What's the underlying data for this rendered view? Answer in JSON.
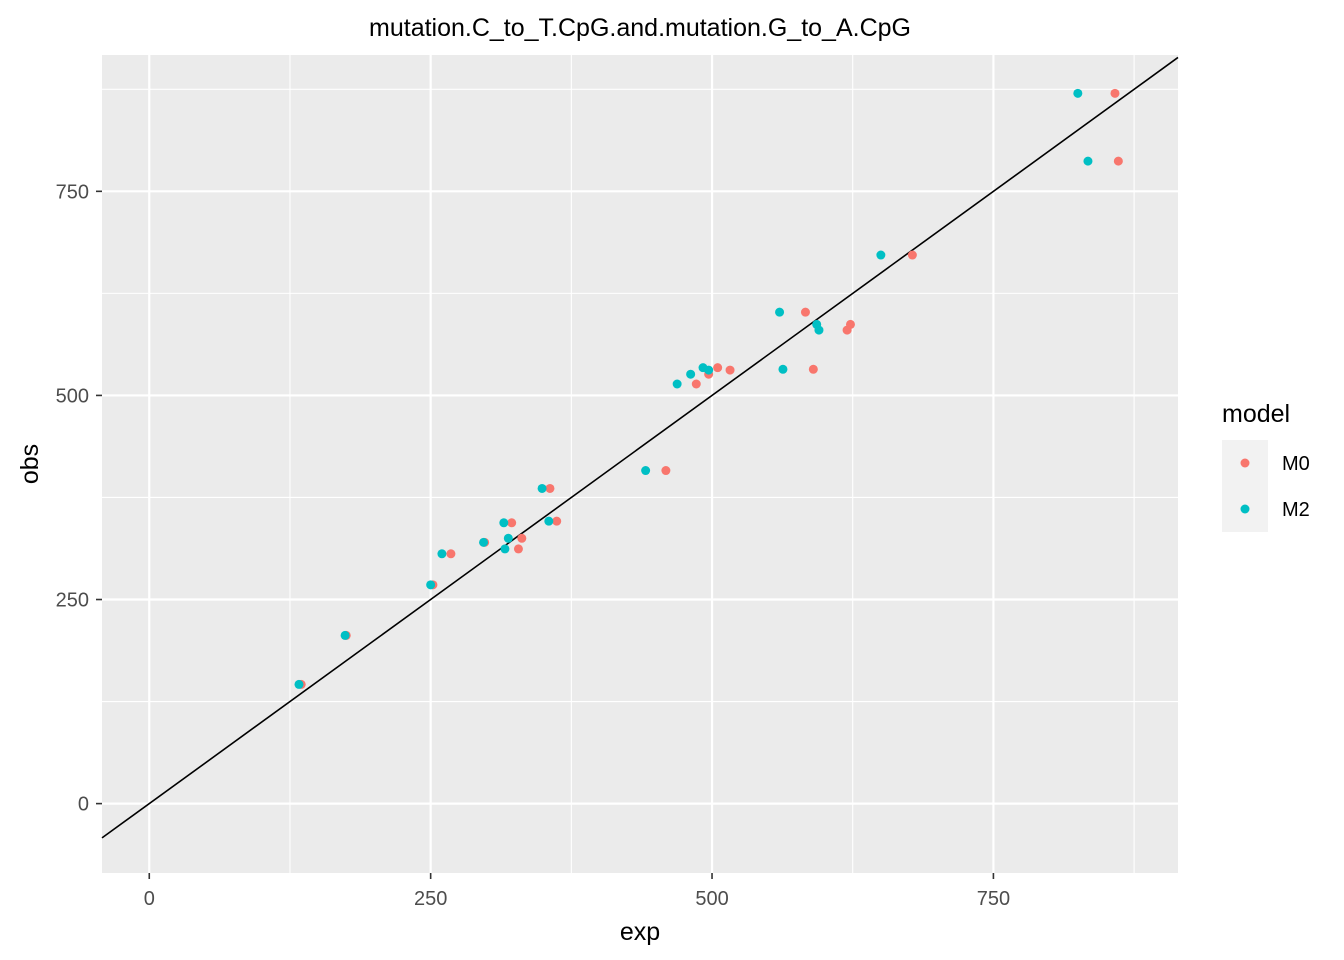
{
  "chart_data": {
    "type": "scatter",
    "title": "mutation.C_to_T.CpG.and.mutation.G_to_A.CpG",
    "xlabel": "exp",
    "ylabel": "obs",
    "xlim": [
      -42,
      914
    ],
    "ylim": [
      -85,
      917
    ],
    "xticks": [
      0,
      250,
      500,
      750
    ],
    "yticks": [
      0,
      250,
      500,
      750
    ],
    "grid": true,
    "reference_line": {
      "type": "identity",
      "slope": 1,
      "intercept": 0,
      "color": "#000000"
    },
    "legend": {
      "title": "model",
      "position": "right"
    },
    "series": [
      {
        "name": "M0",
        "color": "#F8766D",
        "points": [
          [
            135,
            146
          ],
          [
            175,
            206
          ],
          [
            252,
            268
          ],
          [
            268,
            306
          ],
          [
            298,
            320
          ],
          [
            322,
            344
          ],
          [
            328,
            312
          ],
          [
            331,
            325
          ],
          [
            356,
            386
          ],
          [
            362,
            346
          ],
          [
            459,
            408
          ],
          [
            486,
            514
          ],
          [
            497,
            526
          ],
          [
            505,
            534
          ],
          [
            516,
            531
          ],
          [
            583,
            602
          ],
          [
            590,
            532
          ],
          [
            620,
            580
          ],
          [
            623,
            587
          ],
          [
            678,
            672
          ],
          [
            858,
            870
          ],
          [
            861,
            787
          ]
        ]
      },
      {
        "name": "M2",
        "color": "#00BFC4",
        "points": [
          [
            133,
            146
          ],
          [
            174,
            206
          ],
          [
            250,
            268
          ],
          [
            260,
            306
          ],
          [
            297,
            320
          ],
          [
            315,
            344
          ],
          [
            316,
            312
          ],
          [
            319,
            325
          ],
          [
            349,
            386
          ],
          [
            355,
            346
          ],
          [
            441,
            408
          ],
          [
            469,
            514
          ],
          [
            481,
            526
          ],
          [
            492,
            534
          ],
          [
            497,
            531
          ],
          [
            560,
            602
          ],
          [
            563,
            532
          ],
          [
            593,
            587
          ],
          [
            595,
            580
          ],
          [
            650,
            672
          ],
          [
            825,
            870
          ],
          [
            834,
            787
          ]
        ]
      }
    ]
  }
}
